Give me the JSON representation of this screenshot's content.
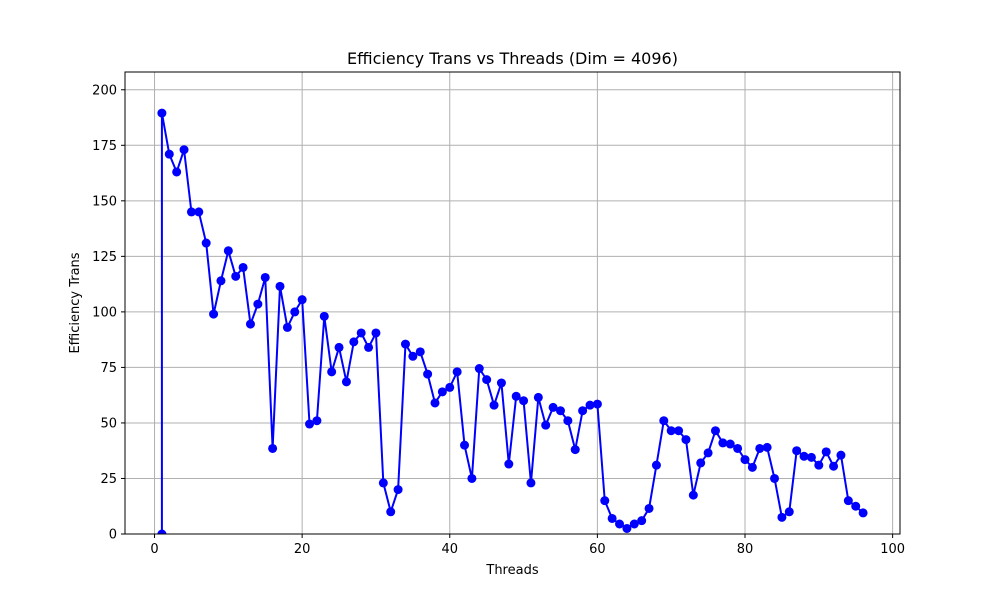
{
  "chart_data": {
    "type": "line",
    "title": "Efficiency Trans vs Threads (Dim = 4096)",
    "xlabel": "Threads",
    "ylabel": "Efficiency Trans",
    "xlim": [
      -4,
      101
    ],
    "ylim": [
      0,
      208
    ],
    "xticks": [
      0,
      20,
      40,
      60,
      80,
      100
    ],
    "yticks": [
      0,
      25,
      50,
      75,
      100,
      125,
      150,
      175,
      200
    ],
    "grid": true,
    "line_color": "#0000ff",
    "marker": "circle",
    "series": [
      {
        "x": [
          1,
          1,
          2,
          3,
          4,
          5,
          6,
          7,
          8,
          9,
          10,
          11,
          12,
          13,
          14,
          15,
          16,
          17,
          18,
          19,
          20,
          21,
          22,
          23,
          24,
          25,
          26,
          27,
          28,
          29,
          30,
          31,
          32,
          33,
          34,
          35,
          36,
          37,
          38,
          39,
          40,
          41,
          42,
          43,
          44,
          45,
          46,
          47,
          48,
          49,
          50,
          51,
          52,
          53,
          54,
          55,
          56,
          57,
          58,
          59,
          60,
          61,
          62,
          63,
          64,
          65,
          66,
          67,
          68,
          69,
          70,
          71,
          72,
          73,
          74,
          75,
          76,
          77,
          78,
          79,
          80,
          81,
          82,
          83,
          84,
          85,
          86,
          87,
          88,
          89,
          90,
          91,
          92,
          93,
          94,
          95,
          96
        ],
        "values": [
          0,
          189.5,
          171,
          163,
          173,
          145,
          145,
          131,
          99,
          114,
          127.5,
          116,
          120,
          94.5,
          103.5,
          115.5,
          38.5,
          111.5,
          93,
          100,
          105.5,
          49.5,
          51,
          98,
          73,
          84,
          68.5,
          86.5,
          90.5,
          84,
          90.5,
          23,
          10,
          20,
          85.5,
          80,
          82,
          72,
          59,
          64,
          66,
          73,
          40,
          25,
          74.5,
          69.5,
          58,
          68,
          31.5,
          62,
          60,
          23,
          61.5,
          49,
          57,
          55.5,
          51,
          38,
          55.5,
          58,
          58.5,
          15,
          7,
          4.5,
          2.5,
          4.5,
          6,
          11.5,
          31,
          51,
          46.5,
          46.5,
          42.5,
          17.5,
          32,
          36.5,
          46.5,
          41,
          40.5,
          38.5,
          33.5,
          30,
          38.5,
          39,
          25,
          7.5,
          10,
          37.5,
          35,
          34.5,
          31,
          37,
          30.5,
          35.5,
          15,
          12.5,
          9.5
        ]
      }
    ]
  }
}
